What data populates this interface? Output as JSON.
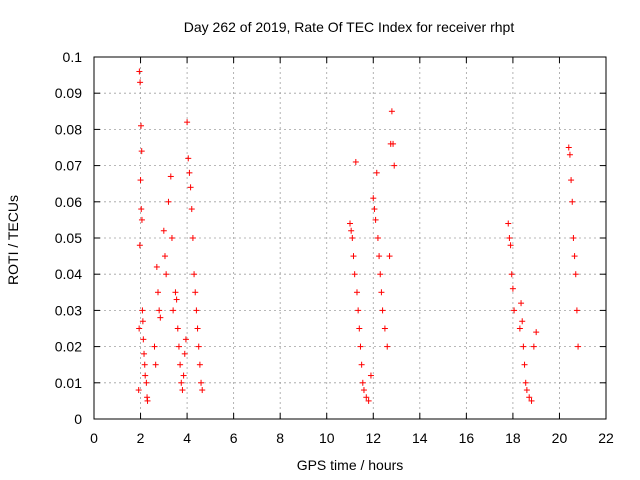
{
  "chart_data": {
    "type": "scatter",
    "title": "Day 262 of 2019, Rate Of TEC Index for receiver rhpt",
    "xlabel": "GPS time / hours",
    "ylabel": "ROTI / TECUs",
    "xlim": [
      0,
      22
    ],
    "ylim": [
      0,
      0.1
    ],
    "xticks": [
      0,
      2,
      4,
      6,
      8,
      10,
      12,
      14,
      16,
      18,
      20,
      22
    ],
    "yticks": [
      0,
      0.01,
      0.02,
      0.03,
      0.04,
      0.05,
      0.06,
      0.07,
      0.08,
      0.09,
      0.1
    ],
    "xtick_labels": [
      "0",
      "2",
      "4",
      "6",
      "8",
      "10",
      "12",
      "14",
      "16",
      "18",
      "20",
      "22"
    ],
    "ytick_labels": [
      "0",
      "0.01",
      "0.02",
      "0.03",
      "0.04",
      "0.05",
      "0.06",
      "0.07",
      "0.08",
      "0.09",
      "0.1"
    ],
    "grid": true,
    "marker": "+",
    "color": "#ff0000",
    "series": [
      {
        "name": "rhpt",
        "x": [
          1.95,
          1.98,
          2.02,
          2.05,
          2.0,
          2.03,
          1.97,
          2.06,
          2.08,
          2.1,
          2.12,
          2.15,
          2.18,
          2.2,
          1.92,
          1.94,
          2.25,
          2.28,
          2.3,
          2.7,
          2.75,
          2.8,
          2.85,
          2.6,
          2.65,
          3.0,
          3.05,
          3.1,
          3.2,
          3.3,
          3.35,
          3.4,
          3.5,
          3.55,
          3.6,
          3.65,
          3.7,
          3.75,
          3.8,
          3.85,
          3.9,
          3.95,
          4.0,
          4.05,
          4.1,
          4.15,
          4.2,
          4.25,
          4.3,
          4.35,
          4.4,
          4.45,
          4.5,
          4.55,
          4.6,
          4.65,
          11.0,
          11.05,
          11.1,
          11.15,
          11.2,
          11.25,
          11.3,
          11.35,
          11.4,
          11.45,
          11.5,
          11.55,
          11.6,
          11.7,
          11.8,
          11.9,
          12.0,
          12.05,
          12.1,
          12.15,
          12.2,
          12.25,
          12.3,
          12.35,
          12.4,
          12.5,
          12.6,
          12.7,
          12.75,
          12.8,
          12.85,
          12.9,
          17.8,
          17.85,
          17.9,
          17.95,
          18.0,
          18.05,
          18.3,
          18.35,
          18.4,
          18.45,
          18.5,
          18.55,
          18.6,
          18.7,
          18.8,
          18.9,
          19.0,
          20.4,
          20.45,
          20.5,
          20.55,
          20.6,
          20.65,
          20.7,
          20.75,
          20.8
        ],
        "y": [
          0.096,
          0.093,
          0.081,
          0.074,
          0.066,
          0.058,
          0.048,
          0.055,
          0.03,
          0.027,
          0.022,
          0.018,
          0.015,
          0.012,
          0.008,
          0.025,
          0.01,
          0.006,
          0.005,
          0.042,
          0.035,
          0.03,
          0.028,
          0.02,
          0.015,
          0.052,
          0.045,
          0.04,
          0.06,
          0.067,
          0.05,
          0.03,
          0.035,
          0.033,
          0.025,
          0.02,
          0.015,
          0.01,
          0.008,
          0.012,
          0.018,
          0.022,
          0.082,
          0.072,
          0.068,
          0.064,
          0.058,
          0.05,
          0.04,
          0.035,
          0.03,
          0.025,
          0.02,
          0.015,
          0.01,
          0.008,
          0.054,
          0.052,
          0.05,
          0.045,
          0.04,
          0.071,
          0.035,
          0.03,
          0.025,
          0.02,
          0.015,
          0.01,
          0.008,
          0.006,
          0.005,
          0.012,
          0.061,
          0.058,
          0.055,
          0.068,
          0.05,
          0.045,
          0.04,
          0.035,
          0.03,
          0.025,
          0.02,
          0.045,
          0.076,
          0.085,
          0.076,
          0.07,
          0.054,
          0.05,
          0.048,
          0.04,
          0.036,
          0.03,
          0.025,
          0.032,
          0.027,
          0.02,
          0.015,
          0.01,
          0.008,
          0.006,
          0.005,
          0.02,
          0.024,
          0.075,
          0.073,
          0.066,
          0.06,
          0.05,
          0.045,
          0.04,
          0.03,
          0.02
        ]
      }
    ]
  }
}
